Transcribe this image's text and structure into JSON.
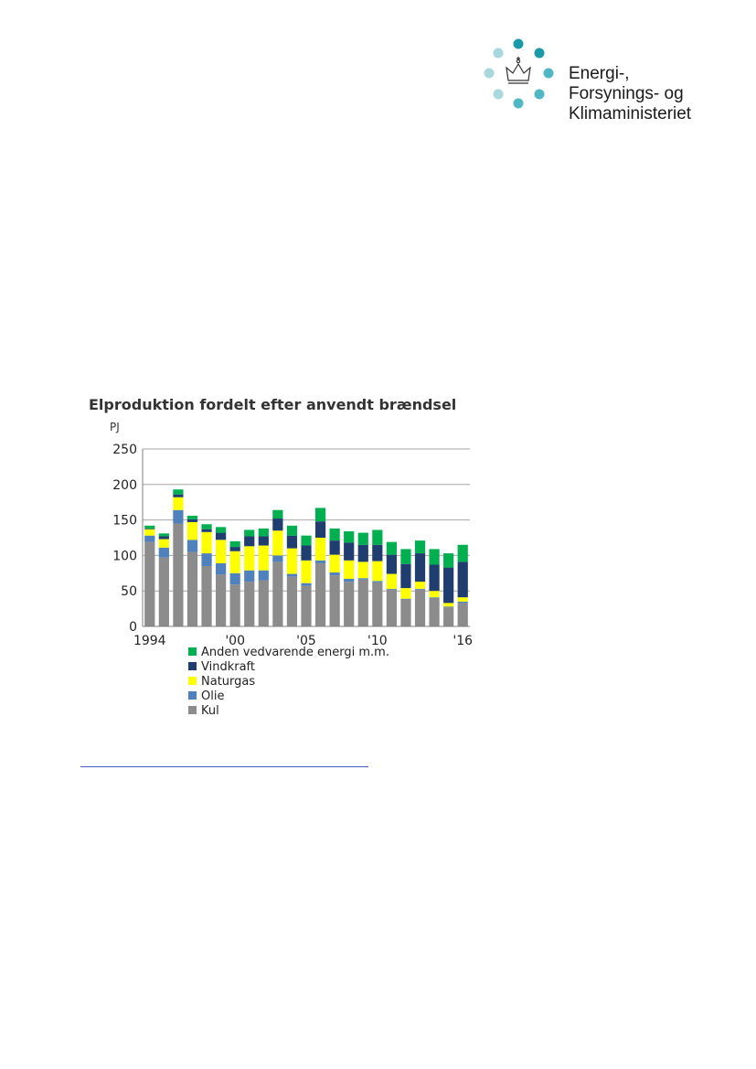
{
  "ministry": {
    "line1": "Energi-,",
    "line2": "Forsynings- og",
    "line3": "Klimaministeriet",
    "dot_colors": [
      "#1a9aa8",
      "#a8d8de",
      "#4fb8c4"
    ]
  },
  "chart_data": {
    "type": "bar",
    "stacked": true,
    "title": "Elproduktion fordelt efter anvendt brændsel",
    "ylabel": "PJ",
    "xlabel": "",
    "ylim": [
      0,
      250
    ],
    "yticks": [
      0,
      50,
      100,
      150,
      200,
      250
    ],
    "grid": true,
    "legend_position": "bottom",
    "categories": [
      "1994",
      "1995",
      "1996",
      "1997",
      "1998",
      "1999",
      "2000",
      "2001",
      "2002",
      "2003",
      "2004",
      "2005",
      "2006",
      "2007",
      "2008",
      "2009",
      "2010",
      "2011",
      "2012",
      "2013",
      "2014",
      "2015",
      "2016"
    ],
    "x_tick_labels": [
      {
        "category": "1994",
        "label": "1994"
      },
      {
        "category": "2000",
        "label": "'00"
      },
      {
        "category": "2005",
        "label": "'05"
      },
      {
        "category": "2010",
        "label": "'10"
      },
      {
        "category": "2016",
        "label": "'16"
      }
    ],
    "series": [
      {
        "name": "Kul",
        "color": "#8c8c8c",
        "values": [
          119,
          97,
          145,
          105,
          85,
          73,
          59,
          63,
          65,
          91,
          70,
          57,
          89,
          72,
          63,
          66,
          62,
          52,
          38,
          52,
          40,
          27,
          33
        ]
      },
      {
        "name": "Olie",
        "color": "#4f81bd",
        "values": [
          9,
          14,
          19,
          17,
          18,
          16,
          16,
          16,
          14,
          9,
          4,
          4,
          4,
          4,
          4,
          2,
          2,
          1,
          1,
          1,
          1,
          1,
          2
        ]
      },
      {
        "name": "Naturgas",
        "color": "#ffff00",
        "values": [
          9,
          12,
          18,
          25,
          30,
          33,
          31,
          34,
          35,
          35,
          36,
          32,
          32,
          25,
          26,
          23,
          28,
          21,
          15,
          10,
          9,
          5,
          6
        ]
      },
      {
        "name": "Vindkraft",
        "color": "#1f3d6e",
        "values": [
          1,
          4,
          4,
          4,
          4,
          10,
          6,
          14,
          13,
          17,
          18,
          21,
          23,
          20,
          25,
          24,
          23,
          27,
          34,
          40,
          37,
          50,
          50
        ]
      },
      {
        "name": "Anden vedvarende energi m.m.",
        "color": "#00b050",
        "values": [
          4,
          4,
          7,
          5,
          7,
          8,
          8,
          9,
          11,
          12,
          14,
          14,
          19,
          17,
          16,
          17,
          21,
          18,
          21,
          18,
          22,
          20,
          24
        ]
      }
    ]
  }
}
